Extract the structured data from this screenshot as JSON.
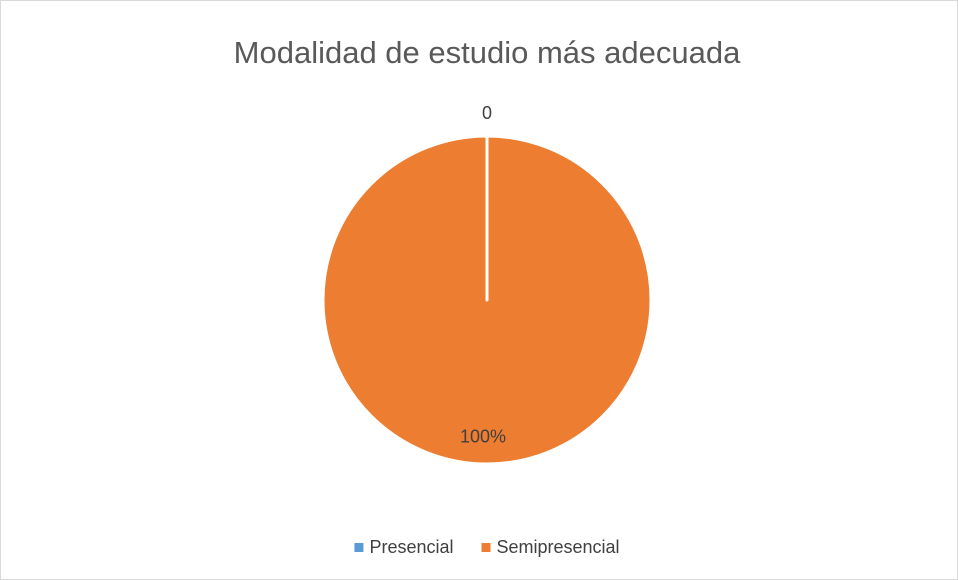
{
  "chart_data": {
    "type": "pie",
    "title": "Modalidad de estudio más adecuada",
    "categories": [
      "Presencial",
      "Semipresencial"
    ],
    "values": [
      0,
      100
    ],
    "value_labels": [
      "0",
      "100%"
    ],
    "colors": [
      "#5b9bd5",
      "#ed7d31"
    ],
    "legend": "bottom"
  }
}
